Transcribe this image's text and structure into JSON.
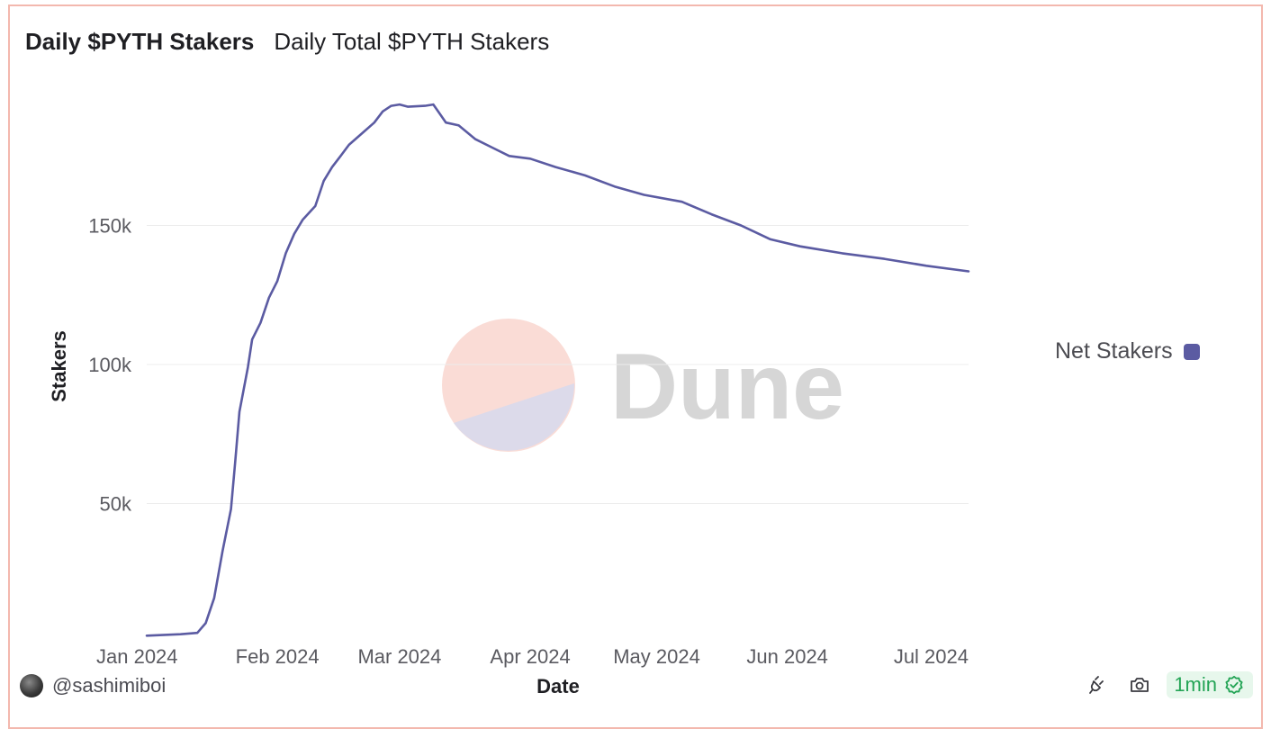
{
  "header": {
    "title": "Daily $PYTH Stakers",
    "subtitle": "Daily Total $PYTH Stakers"
  },
  "watermark": {
    "text": "Dune"
  },
  "legend": {
    "label": "Net Stakers",
    "color": "#5b5ba2"
  },
  "footer": {
    "author": "@sashimiboi",
    "refresh_label": "1min",
    "icons": [
      "api-plug-icon",
      "camera-icon",
      "check-circle-icon"
    ],
    "accent_color": "#23a455"
  },
  "chart_data": {
    "type": "line",
    "title": "Daily $PYTH Stakers",
    "subtitle": "Daily Total $PYTH Stakers",
    "xlabel": "Date",
    "ylabel": "Stakers",
    "xlim": [
      "2024-01-01",
      "2024-07-14"
    ],
    "ylim": [
      0,
      200000
    ],
    "x_tick_labels": [
      "Jan 2024",
      "Feb 2024",
      "Mar 2024",
      "Apr 2024",
      "May 2024",
      "Jun 2024",
      "Jul 2024"
    ],
    "y_tick_labels": [
      "50k",
      "100k",
      "150k"
    ],
    "y_tick_values": [
      50000,
      100000,
      150000
    ],
    "grid": true,
    "legend_position": "right",
    "series": [
      {
        "name": "Net Stakers",
        "color": "#5b5ba2",
        "points": [
          [
            "2024-01-01",
            2500
          ],
          [
            "2024-01-09",
            3000
          ],
          [
            "2024-01-13",
            3500
          ],
          [
            "2024-01-15",
            7000
          ],
          [
            "2024-01-17",
            16000
          ],
          [
            "2024-01-19",
            33000
          ],
          [
            "2024-01-21",
            48000
          ],
          [
            "2024-01-22",
            65000
          ],
          [
            "2024-01-23",
            83000
          ],
          [
            "2024-01-25",
            99000
          ],
          [
            "2024-01-26",
            109000
          ],
          [
            "2024-01-28",
            115000
          ],
          [
            "2024-01-30",
            124000
          ],
          [
            "2024-02-01",
            130000
          ],
          [
            "2024-02-03",
            140000
          ],
          [
            "2024-02-05",
            147000
          ],
          [
            "2024-02-07",
            152000
          ],
          [
            "2024-02-10",
            157000
          ],
          [
            "2024-02-12",
            166000
          ],
          [
            "2024-02-14",
            171000
          ],
          [
            "2024-02-16",
            175000
          ],
          [
            "2024-02-18",
            179000
          ],
          [
            "2024-02-21",
            183000
          ],
          [
            "2024-02-24",
            187000
          ],
          [
            "2024-02-26",
            191000
          ],
          [
            "2024-02-28",
            193000
          ],
          [
            "2024-03-01",
            193500
          ],
          [
            "2024-03-03",
            192700
          ],
          [
            "2024-03-07",
            193000
          ],
          [
            "2024-03-09",
            193500
          ],
          [
            "2024-03-12",
            187000
          ],
          [
            "2024-03-15",
            186000
          ],
          [
            "2024-03-19",
            181000
          ],
          [
            "2024-03-23",
            178000
          ],
          [
            "2024-03-27",
            175000
          ],
          [
            "2024-04-01",
            174000
          ],
          [
            "2024-04-07",
            171000
          ],
          [
            "2024-04-14",
            168000
          ],
          [
            "2024-04-21",
            164000
          ],
          [
            "2024-04-28",
            161000
          ],
          [
            "2024-05-07",
            158500
          ],
          [
            "2024-05-14",
            154000
          ],
          [
            "2024-05-21",
            150000
          ],
          [
            "2024-05-28",
            145000
          ],
          [
            "2024-06-04",
            142500
          ],
          [
            "2024-06-14",
            140000
          ],
          [
            "2024-06-24",
            138000
          ],
          [
            "2024-07-04",
            135500
          ],
          [
            "2024-07-14",
            133500
          ]
        ]
      }
    ]
  }
}
